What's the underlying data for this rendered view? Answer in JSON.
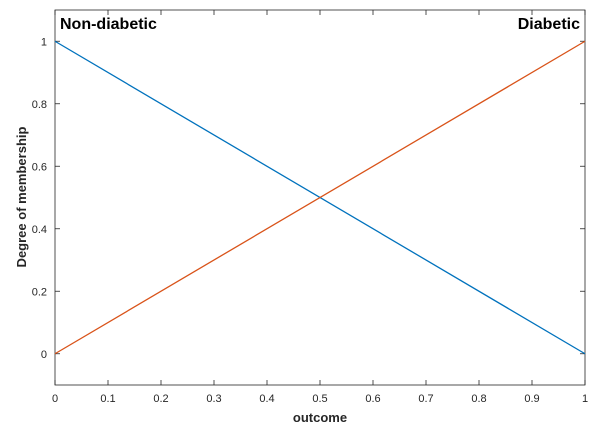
{
  "chart_data": {
    "type": "line",
    "xlabel": "outcome",
    "ylabel": "Degree of membership",
    "xlim": [
      0,
      1
    ],
    "ylim": [
      -0.1,
      1.1
    ],
    "xticks": [
      "0",
      "0.1",
      "0.2",
      "0.3",
      "0.4",
      "0.5",
      "0.6",
      "0.7",
      "0.8",
      "0.9",
      "1"
    ],
    "yticks": [
      "0",
      "0.2",
      "0.4",
      "0.6",
      "0.8",
      "1"
    ],
    "grid": false,
    "series": [
      {
        "name": "Non-diabetic",
        "color": "#0072BD",
        "x": [
          0,
          1
        ],
        "y": [
          1,
          0
        ]
      },
      {
        "name": "Diabetic",
        "color": "#D95319",
        "x": [
          0,
          1
        ],
        "y": [
          0,
          1
        ]
      }
    ],
    "annotations": [
      {
        "text": "Non-diabetic",
        "anchor": "top-left"
      },
      {
        "text": "Diabetic",
        "anchor": "top-right"
      }
    ]
  }
}
